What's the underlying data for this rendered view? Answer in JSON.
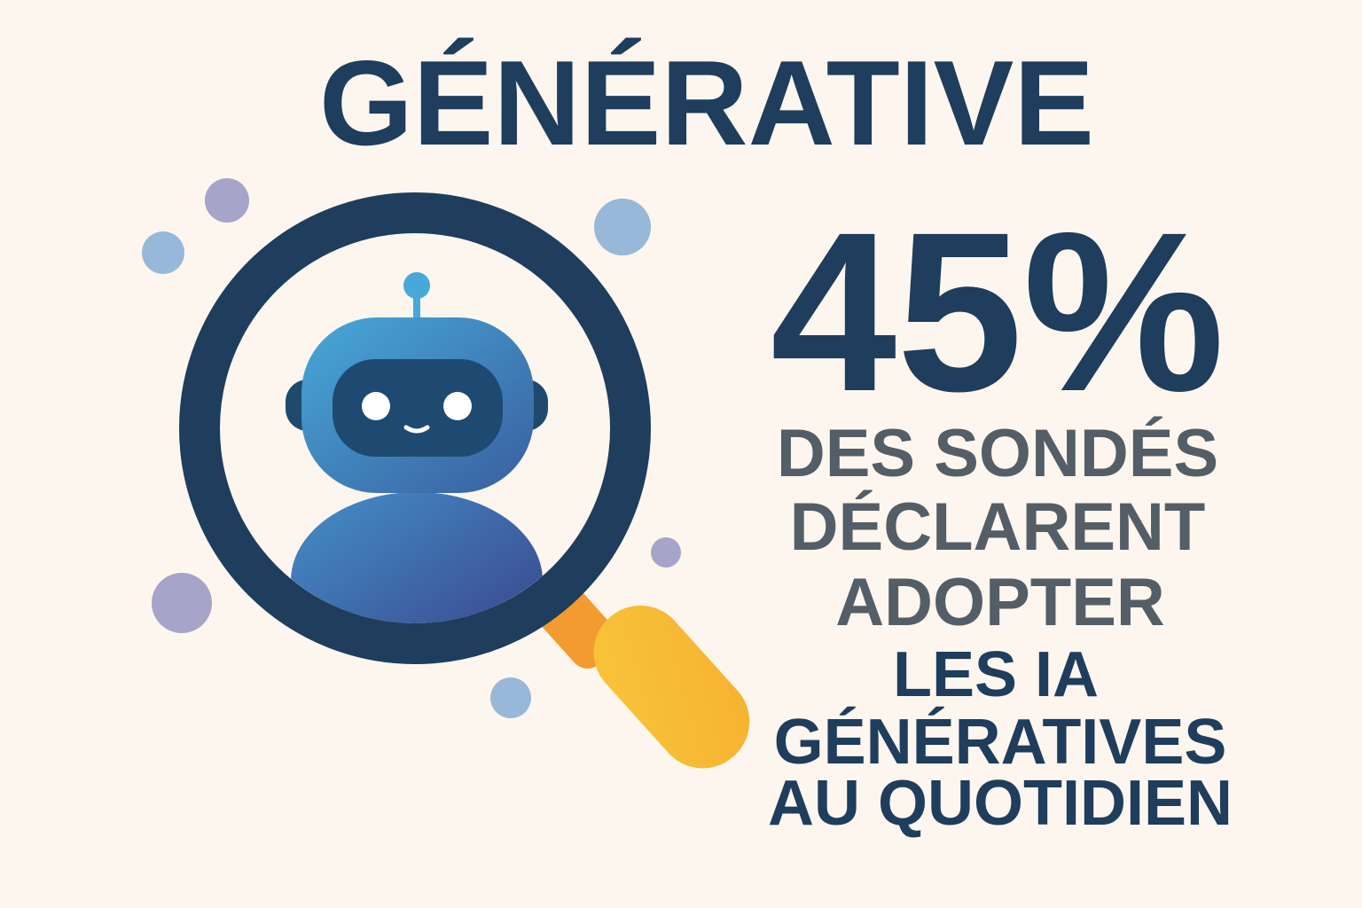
{
  "title": "GÉNÉRATIVE",
  "stat": "45%",
  "description": {
    "lines": [
      "DES SONDÉS",
      "DÉCLARENT",
      "ADOPTER"
    ],
    "highlight_lines": [
      "LES IA",
      "GÉNÉRATIVES",
      "AU QUOTIDIEN"
    ]
  }
}
